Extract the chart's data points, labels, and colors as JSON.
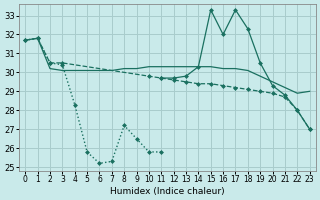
{
  "xlabel": "Humidex (Indice chaleur)",
  "bg_color": "#c9eaea",
  "grid_color": "#a8cccc",
  "line_color": "#1a7060",
  "xlim": [
    -0.5,
    23.5
  ],
  "ylim": [
    24.8,
    33.6
  ],
  "yticks": [
    25,
    26,
    27,
    28,
    29,
    30,
    31,
    32,
    33
  ],
  "xticks": [
    0,
    1,
    2,
    3,
    4,
    5,
    6,
    7,
    8,
    9,
    10,
    11,
    12,
    13,
    14,
    15,
    16,
    17,
    18,
    19,
    20,
    21,
    22,
    23
  ],
  "line1_x": [
    0,
    1,
    2,
    3,
    4,
    5,
    6,
    7,
    8,
    9,
    10,
    11
  ],
  "line1_y": [
    31.7,
    31.8,
    30.5,
    30.4,
    28.3,
    25.8,
    25.2,
    25.3,
    27.2,
    26.5,
    25.8,
    25.8
  ],
  "line2_x": [
    0,
    1,
    2,
    3,
    4,
    5,
    6,
    7,
    8,
    9,
    10,
    11,
    12,
    13,
    14,
    15,
    16,
    17,
    18,
    19,
    20,
    21,
    22,
    23
  ],
  "line2_y": [
    31.7,
    31.8,
    30.2,
    30.1,
    30.1,
    30.1,
    30.1,
    30.1,
    30.2,
    30.2,
    30.3,
    30.3,
    30.3,
    30.3,
    30.3,
    30.3,
    30.2,
    30.2,
    30.1,
    29.8,
    29.5,
    29.2,
    28.9,
    29.0
  ],
  "line3_x": [
    0,
    1,
    2,
    3,
    10,
    11,
    12,
    13,
    14,
    15,
    16,
    17,
    18,
    19,
    20,
    21,
    22,
    23
  ],
  "line3_y": [
    31.7,
    31.8,
    30.5,
    30.5,
    29.8,
    29.7,
    29.6,
    29.5,
    29.4,
    29.4,
    29.3,
    29.2,
    29.1,
    29.0,
    28.9,
    28.7,
    28.0,
    27.0
  ],
  "line4_x": [
    11,
    12,
    13,
    14,
    15,
    16,
    17,
    18,
    19,
    20,
    21,
    22,
    23
  ],
  "line4_y": [
    29.7,
    29.7,
    29.8,
    30.3,
    33.3,
    32.0,
    33.3,
    32.3,
    30.5,
    29.3,
    28.8,
    28.0,
    27.0
  ]
}
